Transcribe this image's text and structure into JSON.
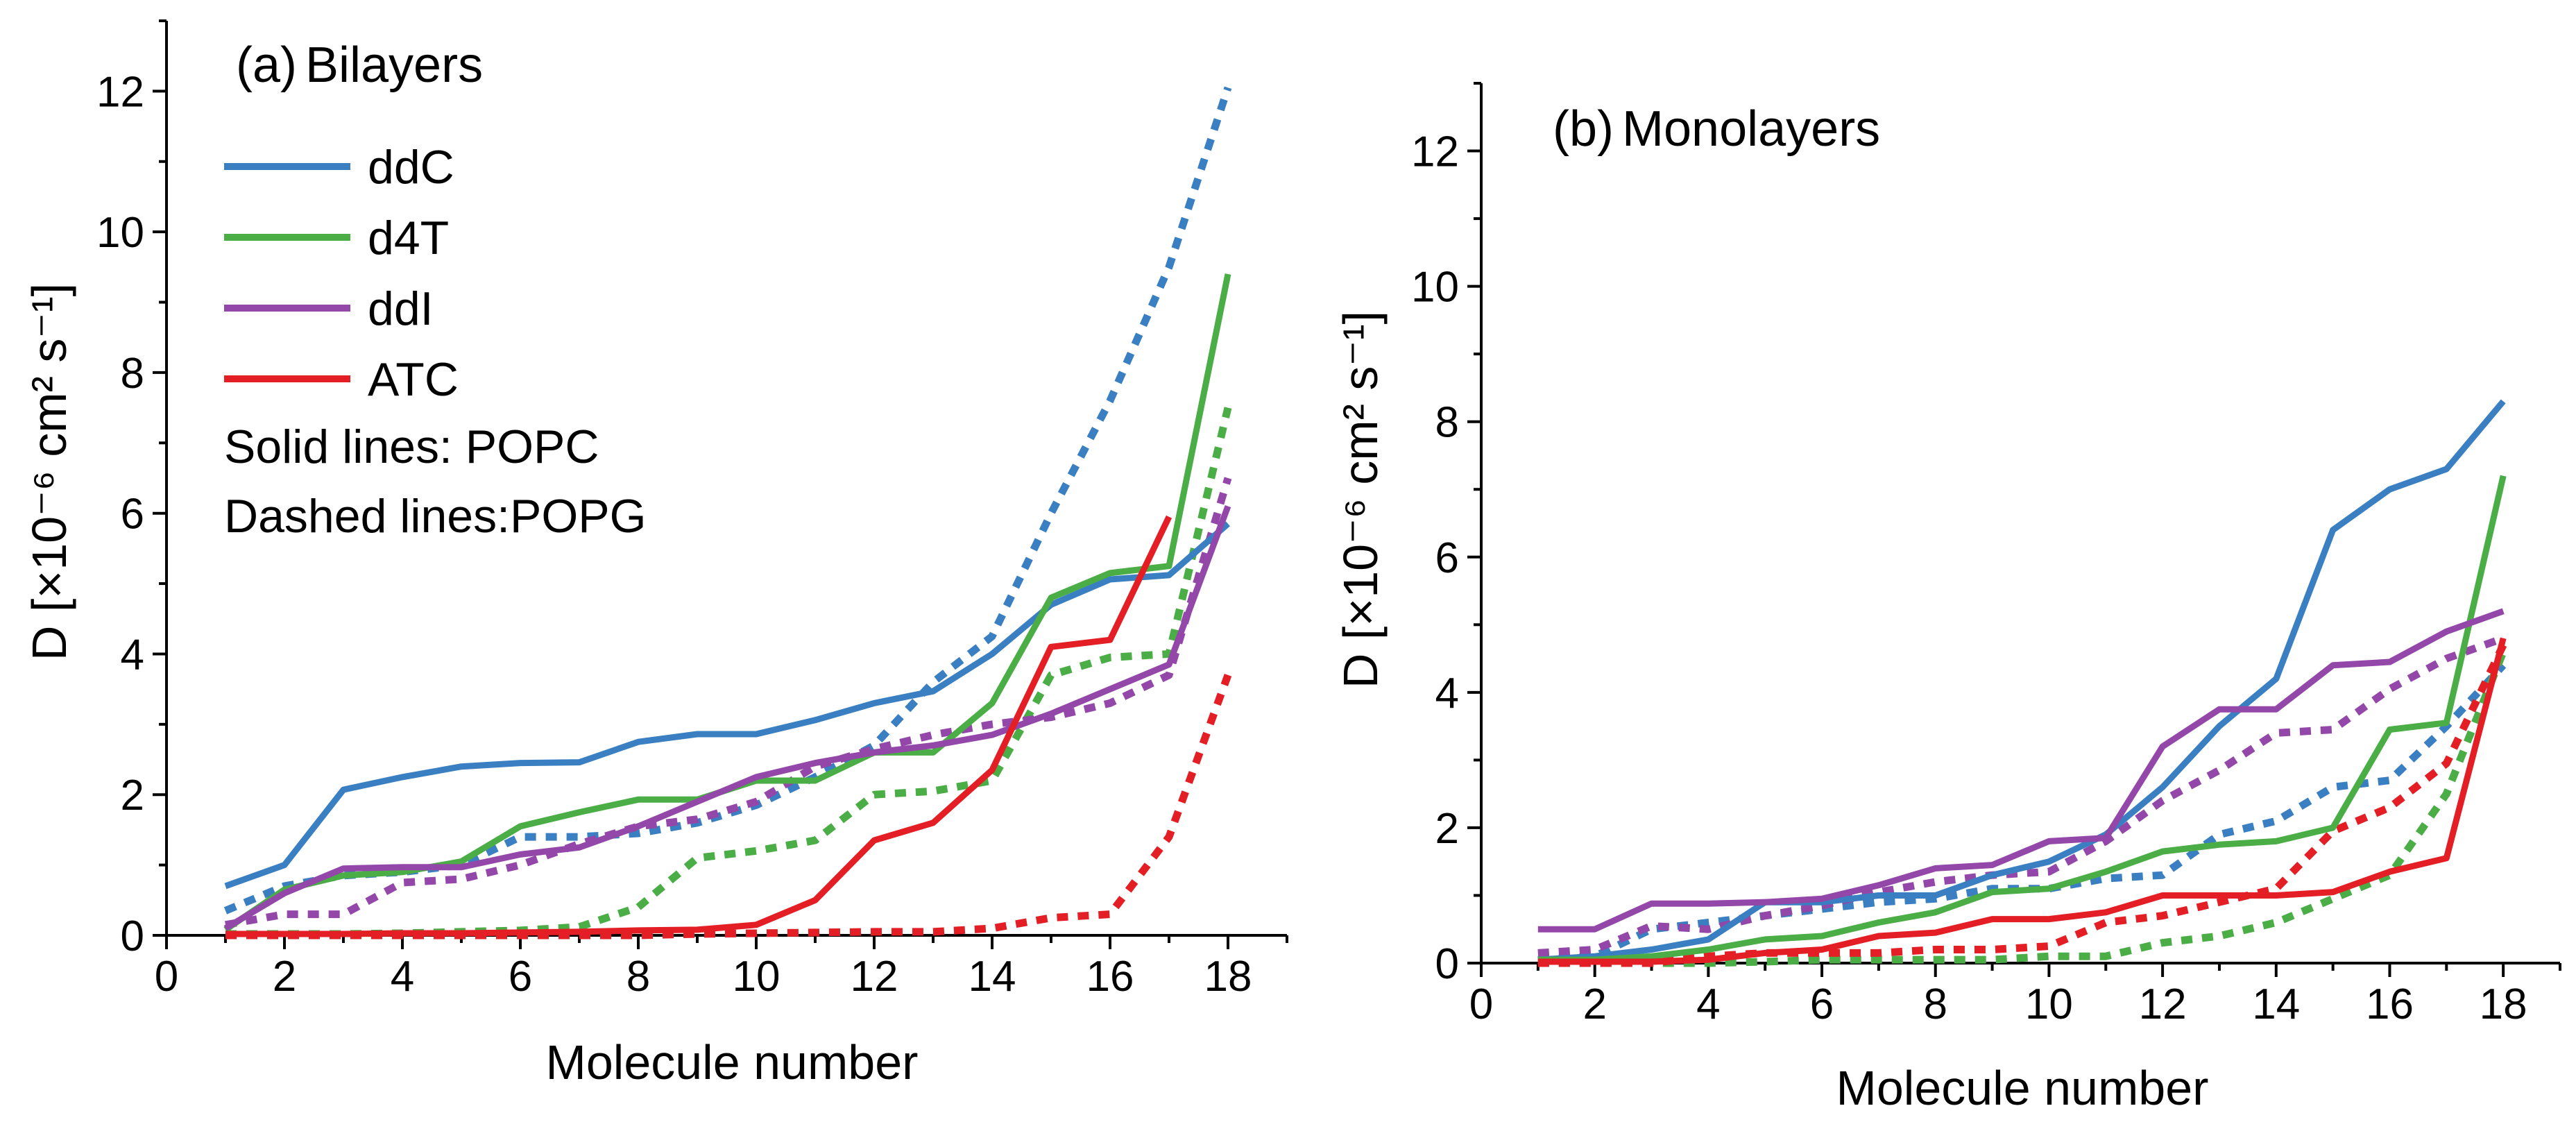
{
  "chart_data": [
    {
      "type": "line",
      "panel": "(a)",
      "title": "Bilayers",
      "xlabel": "Molecule number",
      "ylabel": "D [×10⁻⁶ cm² s⁻¹]",
      "xlim": [
        0,
        19
      ],
      "ylim": [
        0,
        13
      ],
      "xticks": [
        0,
        2,
        4,
        6,
        8,
        10,
        12,
        14,
        16,
        18
      ],
      "yticks": [
        0,
        2,
        4,
        6,
        8,
        10,
        12
      ],
      "legend_position": "top-left",
      "notes": [
        "Solid lines: POPC",
        "Dashed lines:POPG"
      ],
      "series": [
        {
          "name": "ddC",
          "style": "solid",
          "color": "#3a7fc1",
          "legend": true,
          "x": [
            1,
            2,
            3,
            4,
            5,
            6,
            7,
            8,
            9,
            10,
            11,
            12,
            13,
            14,
            15,
            16,
            17,
            18
          ],
          "values": [
            0.7,
            1.0,
            2.07,
            2.25,
            2.4,
            2.45,
            2.46,
            2.75,
            2.86,
            2.86,
            3.06,
            3.3,
            3.47,
            4.0,
            4.7,
            5.06,
            5.12,
            5.85
          ]
        },
        {
          "name": "d4T",
          "style": "solid",
          "color": "#4aad45",
          "legend": true,
          "x": [
            1,
            2,
            3,
            4,
            5,
            6,
            7,
            8,
            9,
            10,
            11,
            12,
            13,
            14,
            15,
            16,
            17,
            18
          ],
          "values": [
            0.08,
            0.65,
            0.85,
            0.9,
            1.05,
            1.55,
            1.75,
            1.93,
            1.93,
            2.2,
            2.2,
            2.6,
            2.6,
            3.3,
            4.8,
            5.15,
            5.25,
            9.4
          ]
        },
        {
          "name": "ddI",
          "style": "solid",
          "color": "#9347a8",
          "legend": true,
          "x": [
            1,
            2,
            3,
            4,
            5,
            6,
            7,
            8,
            9,
            10,
            11,
            12,
            13,
            14,
            15,
            16,
            17,
            18
          ],
          "values": [
            0.1,
            0.6,
            0.95,
            0.97,
            0.97,
            1.15,
            1.25,
            1.55,
            1.9,
            2.25,
            2.45,
            2.6,
            2.7,
            2.85,
            3.15,
            3.5,
            3.85,
            6.1
          ]
        },
        {
          "name": "ATC",
          "style": "solid",
          "color": "#e31e24",
          "legend": true,
          "x": [
            1,
            2,
            3,
            4,
            5,
            6,
            7,
            8,
            9,
            10,
            11,
            12,
            13,
            14,
            15,
            16,
            17
          ],
          "values": [
            0.02,
            0.02,
            0.02,
            0.03,
            0.03,
            0.04,
            0.05,
            0.07,
            0.08,
            0.15,
            0.5,
            1.35,
            1.6,
            2.35,
            4.1,
            4.2,
            5.95
          ]
        },
        {
          "name": "ddC (POPG)",
          "style": "dashed",
          "color": "#3a7fc1",
          "legend": false,
          "x": [
            1,
            2,
            3,
            4,
            5,
            6,
            7,
            8,
            9,
            10,
            11,
            12,
            13,
            14,
            15,
            16,
            17,
            18
          ],
          "values": [
            0.35,
            0.7,
            0.85,
            0.9,
            1.0,
            1.4,
            1.4,
            1.45,
            1.6,
            1.85,
            2.25,
            2.7,
            3.6,
            4.25,
            6.0,
            7.6,
            9.5,
            12.05
          ]
        },
        {
          "name": "d4T (POPG)",
          "style": "dashed",
          "color": "#4aad45",
          "legend": false,
          "x": [
            1,
            2,
            3,
            4,
            5,
            6,
            7,
            8,
            9,
            10,
            11,
            12,
            13,
            14,
            15,
            16,
            17,
            18
          ],
          "values": [
            0.02,
            0.02,
            0.02,
            0.03,
            0.05,
            0.07,
            0.12,
            0.4,
            1.1,
            1.2,
            1.35,
            2.0,
            2.05,
            2.2,
            3.7,
            3.95,
            4.0,
            7.5
          ]
        },
        {
          "name": "ddI (POPG)",
          "style": "dashed",
          "color": "#9347a8",
          "legend": false,
          "x": [
            1,
            2,
            3,
            4,
            5,
            6,
            7,
            8,
            9,
            10,
            11,
            12,
            13,
            14,
            15,
            16,
            17,
            18
          ],
          "values": [
            0.15,
            0.3,
            0.3,
            0.75,
            0.8,
            1.0,
            1.3,
            1.55,
            1.65,
            1.9,
            2.4,
            2.65,
            2.85,
            3.0,
            3.1,
            3.3,
            3.7,
            6.5
          ]
        },
        {
          "name": "ATC (POPG)",
          "style": "dashed",
          "color": "#e31e24",
          "legend": false,
          "x": [
            1,
            2,
            3,
            4,
            5,
            6,
            7,
            8,
            9,
            10,
            11,
            12,
            13,
            14,
            15,
            16,
            17,
            18
          ],
          "values": [
            0.0,
            0.0,
            0.0,
            0.0,
            0.0,
            0.0,
            0.0,
            0.0,
            0.02,
            0.03,
            0.04,
            0.05,
            0.05,
            0.1,
            0.25,
            0.3,
            1.4,
            3.7
          ]
        }
      ]
    },
    {
      "type": "line",
      "panel": "(b)",
      "title": "Monolayers",
      "xlabel": "Molecule number",
      "ylabel": "D [×10⁻⁶ cm² s⁻¹]",
      "xlim": [
        0,
        19
      ],
      "ylim": [
        0,
        13
      ],
      "xticks": [
        0,
        2,
        4,
        6,
        8,
        10,
        12,
        14,
        16,
        18
      ],
      "yticks": [
        0,
        2,
        4,
        6,
        8,
        10,
        12
      ],
      "series": [
        {
          "name": "ddC",
          "style": "solid",
          "color": "#3a7fc1",
          "x": [
            1,
            2,
            3,
            4,
            5,
            6,
            7,
            8,
            9,
            10,
            11,
            12,
            13,
            14,
            15,
            16,
            17,
            18
          ],
          "values": [
            0.05,
            0.1,
            0.2,
            0.35,
            0.9,
            0.9,
            1.0,
            1.0,
            1.3,
            1.5,
            1.9,
            2.6,
            3.5,
            4.2,
            6.4,
            7.0,
            7.3,
            8.3
          ]
        },
        {
          "name": "d4T",
          "style": "solid",
          "color": "#4aad45",
          "x": [
            1,
            2,
            3,
            4,
            5,
            6,
            7,
            8,
            9,
            10,
            11,
            12,
            13,
            14,
            15,
            16,
            17,
            18
          ],
          "values": [
            0.05,
            0.05,
            0.1,
            0.2,
            0.35,
            0.4,
            0.6,
            0.75,
            1.05,
            1.1,
            1.35,
            1.65,
            1.75,
            1.8,
            2.0,
            3.45,
            3.55,
            7.2
          ]
        },
        {
          "name": "ddI",
          "style": "solid",
          "color": "#9347a8",
          "x": [
            1,
            2,
            3,
            4,
            5,
            6,
            7,
            8,
            9,
            10,
            11,
            12,
            13,
            14,
            15,
            16,
            17,
            18
          ],
          "values": [
            0.5,
            0.5,
            0.88,
            0.88,
            0.9,
            0.95,
            1.15,
            1.4,
            1.45,
            1.8,
            1.85,
            3.2,
            3.75,
            3.75,
            4.4,
            4.45,
            4.9,
            5.2
          ]
        },
        {
          "name": "ATC",
          "style": "solid",
          "color": "#e31e24",
          "x": [
            1,
            2,
            3,
            4,
            5,
            6,
            7,
            8,
            9,
            10,
            11,
            12,
            13,
            14,
            15,
            16,
            17,
            18
          ],
          "values": [
            0.02,
            0.02,
            0.02,
            0.05,
            0.15,
            0.2,
            0.4,
            0.45,
            0.65,
            0.65,
            0.75,
            1.0,
            1.0,
            1.0,
            1.05,
            1.35,
            1.55,
            4.8
          ]
        },
        {
          "name": "ddC (POPG)",
          "style": "dashed",
          "color": "#3a7fc1",
          "x": [
            1,
            2,
            3,
            4,
            5,
            6,
            7,
            8,
            9,
            10,
            11,
            12,
            13,
            14,
            15,
            16,
            17,
            18
          ],
          "values": [
            0.05,
            0.1,
            0.5,
            0.6,
            0.7,
            0.8,
            0.9,
            0.95,
            1.1,
            1.1,
            1.25,
            1.3,
            1.9,
            2.1,
            2.6,
            2.7,
            3.5,
            4.4
          ]
        },
        {
          "name": "d4T (POPG)",
          "style": "dashed",
          "color": "#4aad45",
          "x": [
            1,
            2,
            3,
            4,
            5,
            6,
            7,
            8,
            9,
            10,
            11,
            12,
            13,
            14,
            15,
            16,
            17,
            18
          ],
          "values": [
            0.0,
            0.0,
            0.0,
            0.0,
            0.02,
            0.05,
            0.05,
            0.05,
            0.05,
            0.1,
            0.1,
            0.3,
            0.4,
            0.6,
            0.95,
            1.3,
            2.5,
            4.6
          ]
        },
        {
          "name": "ddI (POPG)",
          "style": "dashed",
          "color": "#9347a8",
          "x": [
            1,
            2,
            3,
            4,
            5,
            6,
            7,
            8,
            9,
            10,
            11,
            12,
            13,
            14,
            15,
            16,
            17,
            18
          ],
          "values": [
            0.15,
            0.2,
            0.55,
            0.5,
            0.7,
            0.85,
            1.05,
            1.2,
            1.3,
            1.35,
            1.8,
            2.4,
            2.85,
            3.4,
            3.45,
            4.05,
            4.5,
            4.8
          ]
        },
        {
          "name": "ATC (POPG)",
          "style": "dashed",
          "color": "#e31e24",
          "x": [
            1,
            2,
            3,
            4,
            5,
            6,
            7,
            8,
            9,
            10,
            11,
            12,
            13,
            14,
            15,
            16,
            17,
            18
          ],
          "values": [
            0.0,
            0.0,
            0.0,
            0.1,
            0.15,
            0.15,
            0.15,
            0.2,
            0.2,
            0.25,
            0.6,
            0.7,
            0.9,
            1.1,
            1.95,
            2.3,
            2.95,
            4.7
          ]
        }
      ]
    }
  ]
}
